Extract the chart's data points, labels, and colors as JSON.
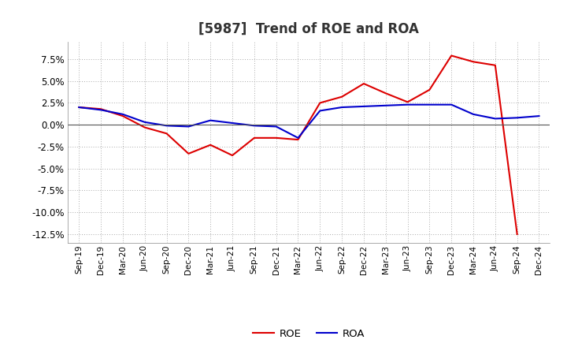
{
  "title": "[5987]  Trend of ROE and ROA",
  "x_labels": [
    "Sep-19",
    "Dec-19",
    "Mar-20",
    "Jun-20",
    "Sep-20",
    "Dec-20",
    "Mar-21",
    "Jun-21",
    "Sep-21",
    "Dec-21",
    "Mar-22",
    "Jun-22",
    "Sep-22",
    "Dec-22",
    "Mar-23",
    "Jun-23",
    "Sep-23",
    "Dec-23",
    "Mar-24",
    "Jun-24",
    "Sep-24",
    "Dec-24"
  ],
  "roe": [
    2.0,
    1.8,
    1.0,
    -0.3,
    -1.0,
    -3.3,
    -2.3,
    -3.5,
    -1.5,
    -1.5,
    -1.7,
    2.5,
    3.2,
    4.7,
    3.6,
    2.6,
    4.0,
    7.9,
    7.2,
    6.8,
    -12.5,
    null
  ],
  "roa": [
    2.0,
    1.7,
    1.2,
    0.3,
    -0.1,
    -0.2,
    0.5,
    0.2,
    -0.1,
    -0.2,
    -1.5,
    1.6,
    2.0,
    2.1,
    2.2,
    2.3,
    2.3,
    2.3,
    1.2,
    0.7,
    0.8,
    1.0
  ],
  "roe_color": "#dd0000",
  "roa_color": "#0000cc",
  "background_color": "#ffffff",
  "grid_color": "#aaaaaa",
  "ylim_min": -13.5,
  "ylim_max": 9.5,
  "yticks": [
    -12.5,
    -10.0,
    -7.5,
    -5.0,
    -2.5,
    0.0,
    2.5,
    5.0,
    7.5
  ],
  "title_fontsize": 12
}
